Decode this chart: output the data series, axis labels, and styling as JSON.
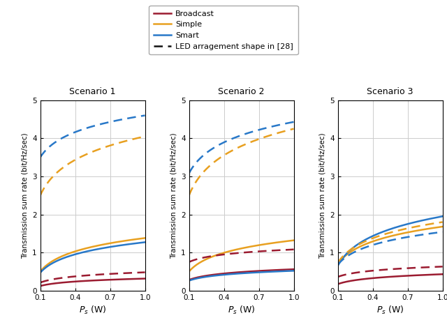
{
  "colors": {
    "broadcast": "#9B1B30",
    "simple": "#E8A020",
    "smart": "#2878C8",
    "black": "#111111"
  },
  "legend": {
    "broadcast": "Broadcast",
    "simple": "Simple",
    "smart": "Smart",
    "reference": "LED arragement shape in [28]"
  },
  "scenarios": [
    "Scenario 1",
    "Scenario 2",
    "Scenario 3"
  ],
  "xlabel": "$P_s$ (W)",
  "ylabel": "Transmission sum rate (bit/Hz/sec)",
  "xlim": [
    0.1,
    1.0
  ],
  "ylim": [
    0,
    5
  ],
  "yticks": [
    0,
    1,
    2,
    3,
    4,
    5
  ],
  "xticks": [
    0.1,
    0.4,
    0.7,
    1.0
  ]
}
